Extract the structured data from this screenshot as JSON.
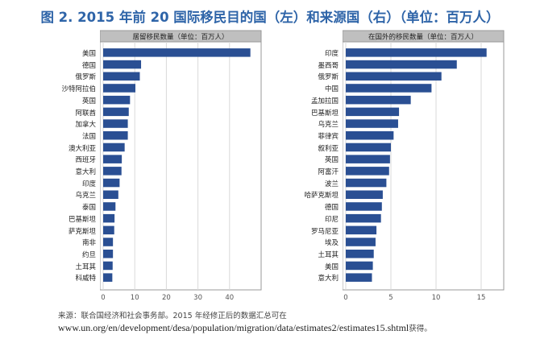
{
  "title": "图 2. 2015 年前 20 国际移民目的国（左）和来源国（右）（单位：百万人）",
  "source": {
    "line1": "来源：联合国经济和社会事务部。2015 年经修正后的数据汇总可在",
    "url": "www.un.org/en/development/desa/population/migration/data/estimates2/estimates15.shtml",
    "suffix": "获得。"
  },
  "colors": {
    "bar": "#2a4f93",
    "header_bg": "#bfbfbf",
    "grid": "#d9d9d9",
    "frame": "#999999",
    "title": "#2e64a8"
  },
  "chart_data": [
    {
      "type": "bar",
      "orientation": "horizontal",
      "title": "居留移民数量（单位：百万人）",
      "categories": [
        "美国",
        "德国",
        "俄罗斯",
        "沙特阿拉伯",
        "英国",
        "阿联酋",
        "加拿大",
        "法国",
        "澳大利亚",
        "西班牙",
        "意大利",
        "印度",
        "乌克兰",
        "泰国",
        "巴基斯坦",
        "萨克斯坦",
        "南非",
        "约旦",
        "土耳其",
        "科威特"
      ],
      "values": [
        46.6,
        12.0,
        11.6,
        10.2,
        8.5,
        8.1,
        7.8,
        7.8,
        6.8,
        5.9,
        5.8,
        5.2,
        4.8,
        3.9,
        3.6,
        3.5,
        3.1,
        3.1,
        3.0,
        2.9
      ],
      "xlim": [
        0,
        50
      ],
      "xticks": [
        0,
        10,
        20,
        30,
        40
      ],
      "grid": true
    },
    {
      "type": "bar",
      "orientation": "horizontal",
      "title": "在国外的移民数量（单位：百万人）",
      "categories": [
        "印度",
        "墨西哥",
        "俄罗斯",
        "中国",
        "孟加拉国",
        "巴基斯坦",
        "乌克兰",
        "菲律宾",
        "叙利亚",
        "英国",
        "阿富汗",
        "波兰",
        "哈萨克斯坦",
        "德国",
        "印尼",
        "罗马尼亚",
        "埃及",
        "土耳其",
        "美国",
        "意大利"
      ],
      "values": [
        15.6,
        12.3,
        10.6,
        9.5,
        7.2,
        5.9,
        5.8,
        5.3,
        5.0,
        4.9,
        4.8,
        4.5,
        4.1,
        4.0,
        3.9,
        3.4,
        3.3,
        3.1,
        3.0,
        2.9
      ],
      "xlim": [
        0,
        17.5
      ],
      "xticks": [
        0,
        5,
        10,
        15
      ],
      "grid": true
    }
  ]
}
